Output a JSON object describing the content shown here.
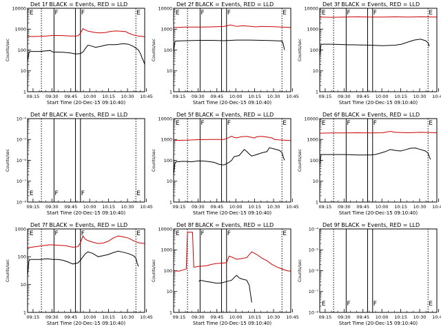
{
  "chart_data": [
    {
      "type": "line",
      "title": "Det 1f  BLACK = Events, RED = LLD",
      "xlabel": "Start Time (20-Dec-15 09:10:40)",
      "ylabel": "Counts/sec",
      "ylim": [
        1,
        10000
      ],
      "empty": false,
      "ytick_labels": [
        "1",
        "10",
        "100",
        "1000",
        "10000"
      ],
      "xtick_labels": [
        "09:15",
        "09:30",
        "09:45",
        "10:00",
        "10:15",
        "10:30",
        "10:45"
      ],
      "flags": [
        {
          "label": "E",
          "x": 1.0
        },
        {
          "label": "F",
          "x": 21.0
        },
        {
          "label": "F",
          "x": 42.0
        },
        {
          "label": "E",
          "x": 86.0
        }
      ],
      "series": [
        {
          "name": "Events",
          "color": "#000000",
          "x": [
            0,
            1,
            2,
            3,
            10,
            18,
            20,
            28,
            34,
            38,
            42,
            44,
            46,
            48,
            50,
            54,
            58,
            62,
            64,
            66,
            70,
            76,
            80,
            84,
            88,
            90,
            91,
            92,
            93
          ],
          "y": [
            30,
            70,
            85,
            85,
            85,
            95,
            80,
            78,
            72,
            65,
            68,
            80,
            120,
            170,
            160,
            135,
            150,
            170,
            180,
            180,
            180,
            200,
            190,
            150,
            100,
            60,
            40,
            30,
            20
          ]
        },
        {
          "name": "LLD",
          "color": "#cc0000",
          "x": [
            0,
            5,
            15,
            20,
            28,
            34,
            38,
            40,
            42,
            44,
            46,
            48,
            50,
            54,
            58,
            62,
            66,
            70,
            74,
            78,
            80,
            84,
            88,
            93
          ],
          "y": [
            450,
            440,
            470,
            500,
            490,
            470,
            470,
            480,
            640,
            1060,
            900,
            800,
            760,
            680,
            660,
            690,
            780,
            820,
            800,
            760,
            650,
            520,
            470,
            430
          ]
        }
      ]
    },
    {
      "type": "line",
      "title": "Det 2f  BLACK = Events, RED = LLD",
      "xlabel": "Start Time (20-Dec-15 09:10:40)",
      "ylabel": "Counts/sec",
      "ylim": [
        1,
        10000
      ],
      "empty": false,
      "ytick_labels": [
        "1",
        "10",
        "100",
        "1000",
        "10000"
      ],
      "xtick_labels": [
        "09:15",
        "09:30",
        "09:45",
        "10:00",
        "10:15",
        "10:30",
        "10:45"
      ],
      "flags": [
        {
          "label": "E",
          "x": 1.0
        },
        {
          "label": "F",
          "x": 21.0
        },
        {
          "label": "F",
          "x": 42.0
        },
        {
          "label": "E",
          "x": 86.0
        }
      ],
      "series": [
        {
          "name": "Events",
          "color": "#000000",
          "x": [
            0,
            1,
            2,
            10,
            20,
            30,
            40,
            50,
            60,
            70,
            80,
            86,
            87,
            88
          ],
          "y": [
            80,
            250,
            270,
            280,
            290,
            290,
            280,
            300,
            300,
            290,
            280,
            270,
            200,
            100
          ]
        },
        {
          "name": "LLD",
          "color": "#cc0000",
          "x": [
            0,
            10,
            20,
            30,
            40,
            45,
            50,
            55,
            60,
            65,
            70,
            80,
            93
          ],
          "y": [
            1200,
            1250,
            1260,
            1280,
            1340,
            1600,
            1350,
            1450,
            1380,
            1280,
            1350,
            1300,
            1200
          ]
        }
      ]
    },
    {
      "type": "line",
      "title": "Det 3f  BLACK = Events, RED = LLD",
      "xlabel": "Start Time (20-Dec-15 09:10:40)",
      "ylabel": "Counts/sec",
      "ylim": [
        1,
        10000
      ],
      "empty": false,
      "ytick_labels": [
        "1",
        "10",
        "100",
        "1000",
        "10000"
      ],
      "xtick_labels": [
        "09:15",
        "09:30",
        "09:45",
        "10:00",
        "10:15",
        "10:30",
        "10:45"
      ],
      "flags": [
        {
          "label": "E",
          "x": 1.0
        },
        {
          "label": "F",
          "x": 21.0
        },
        {
          "label": "F",
          "x": 42.0
        },
        {
          "label": "E",
          "x": 86.0
        }
      ],
      "series": [
        {
          "name": "Events",
          "color": "#000000",
          "x": [
            0,
            1,
            2,
            10,
            20,
            30,
            40,
            50,
            60,
            65,
            70,
            75,
            80,
            84,
            86,
            87
          ],
          "y": [
            50,
            180,
            190,
            190,
            180,
            175,
            170,
            160,
            170,
            190,
            240,
            300,
            330,
            280,
            220,
            150
          ]
        },
        {
          "name": "LLD",
          "color": "#cc0000",
          "x": [
            0,
            10,
            20,
            30,
            40,
            50,
            60,
            70,
            80,
            93
          ],
          "y": [
            3800,
            3700,
            3800,
            3900,
            3800,
            3800,
            3900,
            3800,
            3900,
            3800
          ]
        }
      ]
    },
    {
      "type": "line",
      "title": "Det 4f  BLACK = Events, RED = LLD",
      "xlabel": "Start Time (20-Dec-15 09:10:40)",
      "ylabel": "Counts/sec",
      "ylim": [
        1e-08,
        0.0001
      ],
      "empty": true,
      "ytick_labels": [
        "10⁻⁸",
        "10⁻⁷",
        "10⁻⁶",
        "10⁻⁵",
        "10⁻⁴"
      ],
      "xtick_labels": [
        "09:15",
        "09:30",
        "09:45",
        "10:00",
        "10:15",
        "10:30",
        "10:45"
      ],
      "flags": [
        {
          "label": "E",
          "x": 1.0
        },
        {
          "label": "F",
          "x": 21.0
        },
        {
          "label": "F",
          "x": 42.0
        },
        {
          "label": "E",
          "x": 86.0
        }
      ],
      "series": []
    },
    {
      "type": "line",
      "title": "Det 5f  BLACK = Events, RED = LLD",
      "xlabel": "Start Time (20-Dec-15 09:10:40)",
      "ylabel": "Counts/sec",
      "ylim": [
        1,
        10000
      ],
      "empty": false,
      "ytick_labels": [
        "1",
        "10",
        "100",
        "1000",
        "10000"
      ],
      "xtick_labels": [
        "09:15",
        "09:30",
        "09:45",
        "10:00",
        "10:15",
        "10:30",
        "10:45"
      ],
      "flags": [
        {
          "label": "E",
          "x": 1.0
        },
        {
          "label": "F",
          "x": 21.0
        },
        {
          "label": "F",
          "x": 42.0
        },
        {
          "label": "E",
          "x": 86.0
        }
      ],
      "series": [
        {
          "name": "Events",
          "color": "#000000",
          "x": [
            0,
            1,
            2,
            8,
            14,
            20,
            26,
            32,
            36,
            40,
            44,
            46,
            48,
            52,
            56,
            58,
            60,
            62,
            66,
            70,
            74,
            76,
            80,
            84,
            86,
            87,
            88
          ],
          "y": [
            20,
            70,
            85,
            90,
            85,
            95,
            90,
            80,
            65,
            60,
            80,
            100,
            150,
            170,
            330,
            270,
            200,
            160,
            190,
            230,
            260,
            400,
            350,
            300,
            240,
            150,
            100
          ]
        },
        {
          "name": "LLD",
          "color": "#cc0000",
          "x": [
            0,
            10,
            20,
            30,
            40,
            44,
            46,
            48,
            50,
            54,
            58,
            62,
            64,
            66,
            70,
            74,
            78,
            80,
            84,
            88,
            93
          ],
          "y": [
            900,
            920,
            980,
            1000,
            1000,
            1250,
            1450,
            1250,
            1200,
            1350,
            1400,
            1250,
            1180,
            1350,
            1400,
            1300,
            1200,
            1000,
            950,
            920,
            880
          ]
        }
      ]
    },
    {
      "type": "line",
      "title": "Det 6f  BLACK = Events, RED = LLD",
      "xlabel": "Start Time (20-Dec-15 09:10:40)",
      "ylabel": "Counts/sec",
      "ylim": [
        1,
        10000
      ],
      "empty": false,
      "ytick_labels": [
        "1",
        "10",
        "100",
        "1000",
        "10000"
      ],
      "xtick_labels": [
        "09:15",
        "09:30",
        "09:45",
        "10:00",
        "10:15",
        "10:30",
        "10:45"
      ],
      "flags": [
        {
          "label": "E",
          "x": 1.0
        },
        {
          "label": "F",
          "x": 21.0
        },
        {
          "label": "F",
          "x": 42.0
        },
        {
          "label": "E",
          "x": 86.0
        }
      ],
      "series": [
        {
          "name": "Events",
          "color": "#000000",
          "x": [
            0,
            1,
            2,
            10,
            20,
            30,
            40,
            44,
            48,
            52,
            56,
            60,
            64,
            68,
            72,
            76,
            80,
            84,
            86,
            87,
            88
          ],
          "y": [
            60,
            180,
            190,
            190,
            190,
            180,
            180,
            190,
            220,
            260,
            330,
            300,
            280,
            320,
            380,
            390,
            330,
            280,
            220,
            150,
            110
          ]
        },
        {
          "name": "LLD",
          "color": "#cc0000",
          "x": [
            0,
            10,
            20,
            30,
            40,
            50,
            56,
            60,
            70,
            80,
            93
          ],
          "y": [
            2000,
            2050,
            2050,
            2100,
            2050,
            2100,
            2450,
            2200,
            2100,
            2200,
            2100
          ]
        }
      ]
    },
    {
      "type": "line",
      "title": "Det 7f  BLACK = Events, RED = LLD",
      "xlabel": "Start Time (20-Dec-15 09:10:40)",
      "ylabel": "Counts/sec",
      "ylim": [
        1,
        1000
      ],
      "empty": false,
      "ytick_labels": [
        "1",
        "10",
        "100",
        "1000"
      ],
      "xtick_labels": [
        "09:15",
        "09:30",
        "09:45",
        "10:00",
        "10:15",
        "10:30",
        "10:45"
      ],
      "flags": [
        {
          "label": "E",
          "x": 1.0
        },
        {
          "label": "F",
          "x": 21.0
        },
        {
          "label": "F",
          "x": 42.0
        },
        {
          "label": "E",
          "x": 86.0
        }
      ],
      "series": [
        {
          "name": "Events",
          "color": "#000000",
          "x": [
            0,
            1,
            2,
            10,
            16,
            20,
            24,
            28,
            32,
            36,
            40,
            42,
            44,
            46,
            48,
            52,
            56,
            60,
            64,
            68,
            72,
            76,
            80,
            84,
            86,
            87,
            88
          ],
          "y": [
            20,
            70,
            80,
            80,
            85,
            80,
            80,
            75,
            65,
            55,
            60,
            75,
            100,
            130,
            150,
            130,
            100,
            110,
            120,
            140,
            160,
            145,
            130,
            110,
            90,
            60,
            45
          ]
        },
        {
          "name": "LLD",
          "color": "#cc0000",
          "x": [
            0,
            6,
            12,
            18,
            24,
            30,
            36,
            40,
            42,
            44,
            46,
            48,
            52,
            56,
            60,
            64,
            68,
            72,
            76,
            80,
            84,
            88,
            93
          ],
          "y": [
            210,
            230,
            250,
            270,
            260,
            250,
            220,
            230,
            320,
            560,
            420,
            380,
            330,
            300,
            310,
            360,
            470,
            560,
            520,
            470,
            380,
            320,
            300
          ]
        }
      ]
    },
    {
      "type": "line",
      "title": "Det 8f  BLACK = Events, RED = LLD",
      "xlabel": "Start Time (20-Dec-15 09:10:40)",
      "ylabel": "Counts/sec",
      "ylim": [
        1,
        10000
      ],
      "empty": false,
      "ytick_labels": [
        "1",
        "10",
        "100",
        "1000",
        "10000"
      ],
      "xtick_labels": [
        "09:15",
        "09:30",
        "09:45",
        "10:00",
        "10:15",
        "10:30",
        "10:45"
      ],
      "flags": [
        {
          "label": "E",
          "x": 1.0
        },
        {
          "label": "F",
          "x": 21.0
        },
        {
          "label": "F",
          "x": 42.0
        },
        {
          "label": "E",
          "x": 86.0
        }
      ],
      "series": [
        {
          "name": "Events",
          "color": "#000000",
          "x": [
            20,
            21,
            26,
            30,
            34,
            38,
            42,
            46,
            50,
            52,
            54,
            58,
            60,
            62
          ],
          "y": [
            30,
            35,
            30,
            28,
            25,
            26,
            30,
            35,
            60,
            45,
            40,
            35,
            20,
            3
          ]
        },
        {
          "name": "LLD",
          "color": "#cc0000",
          "x": [
            0,
            4,
            8,
            10,
            11,
            15,
            16,
            17,
            20,
            26,
            30,
            34,
            38,
            42,
            44,
            46,
            50,
            54,
            58,
            62,
            66,
            70,
            74,
            78,
            82,
            86,
            90,
            93
          ],
          "y": [
            100,
            95,
            110,
            120,
            7000,
            7000,
            150,
            150,
            160,
            170,
            200,
            220,
            230,
            240,
            500,
            450,
            350,
            380,
            420,
            800,
            600,
            400,
            300,
            200,
            150,
            120,
            100,
            95
          ]
        }
      ]
    },
    {
      "type": "line",
      "title": "Det 9f  BLACK = Events, RED = LLD",
      "xlabel": "Start Time (20-Dec-15 09:10:40)",
      "ylabel": "Counts/sec",
      "ylim": [
        1e-08,
        0.0001
      ],
      "empty": true,
      "ytick_labels": [
        "10⁻⁸",
        "10⁻⁷",
        "10⁻⁶",
        "10⁻⁵",
        "10⁻⁴"
      ],
      "xtick_labels": [
        "09:15",
        "09:30",
        "09:45",
        "10:00",
        "10:15",
        "10:30",
        "10:45"
      ],
      "flags": [
        {
          "label": "E",
          "x": 1.0
        },
        {
          "label": "F",
          "x": 21.0
        },
        {
          "label": "F",
          "x": 42.0
        },
        {
          "label": "E",
          "x": 86.0
        }
      ],
      "series": []
    }
  ]
}
